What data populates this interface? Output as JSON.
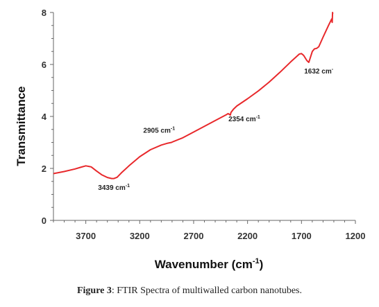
{
  "caption": {
    "label": "Figure 3",
    "text": ": FTIR Spectra of multiwalled carbon nanotubes."
  },
  "chart_data": {
    "type": "line",
    "title": "",
    "xlabel": "Wavenumber (cm-1)",
    "xlabel_main": "Wavenumber (cm",
    "xlabel_sup": "-1",
    "xlabel_close": ")",
    "ylabel": "Transmittance",
    "xlim": [
      4000,
      1200
    ],
    "x_reversed": true,
    "ylim": [
      0,
      8
    ],
    "xticks": [
      3700,
      3200,
      2700,
      2200,
      1700,
      1200
    ],
    "yticks": [
      0,
      2,
      4,
      6,
      8
    ],
    "grid": false,
    "legend": "none",
    "line_color": "#e8282b",
    "series": [
      {
        "x": [
          4000,
          3900,
          3800,
          3750,
          3700,
          3650,
          3600,
          3550,
          3500,
          3460,
          3439,
          3410,
          3370,
          3300,
          3200,
          3100,
          3000,
          2940,
          2905,
          2890,
          2800,
          2700,
          2600,
          2500,
          2400,
          2380,
          2360,
          2354,
          2345,
          2330,
          2300,
          2200,
          2100,
          2000,
          1900,
          1800,
          1720,
          1700,
          1680,
          1650,
          1632,
          1615,
          1600,
          1580,
          1560,
          1540,
          1500,
          1450,
          1420,
          1415,
          1412,
          1410,
          1408
        ],
        "y": [
          1.8,
          1.88,
          1.98,
          2.04,
          2.1,
          2.06,
          1.9,
          1.75,
          1.65,
          1.61,
          1.61,
          1.66,
          1.83,
          2.1,
          2.45,
          2.72,
          2.9,
          2.97,
          3.0,
          3.03,
          3.18,
          3.4,
          3.62,
          3.84,
          4.06,
          4.11,
          4.05,
          4.15,
          4.2,
          4.28,
          4.4,
          4.68,
          4.98,
          5.32,
          5.7,
          6.1,
          6.4,
          6.42,
          6.35,
          6.15,
          6.08,
          6.3,
          6.5,
          6.6,
          6.62,
          6.68,
          7.05,
          7.5,
          7.75,
          7.62,
          8.0,
          7.95,
          7.95
        ]
      }
    ],
    "annotations": [
      {
        "text": "3439 cm",
        "sup": "-1",
        "x": 3439,
        "y": 1.18
      },
      {
        "text": "2905 cm",
        "sup": "-1",
        "x": 3020,
        "y": 3.38
      },
      {
        "text": "2354 cm",
        "sup": "-1",
        "x": 2230,
        "y": 3.82
      },
      {
        "text": "1632 cm",
        "sup": "-",
        "x": 1540,
        "y": 5.65
      }
    ]
  }
}
